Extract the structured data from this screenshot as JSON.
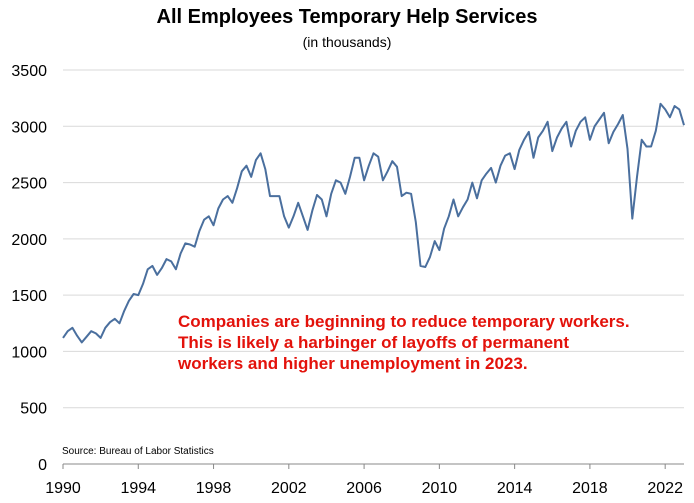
{
  "chart_data": {
    "type": "line",
    "title": "All Employees Temporary Help Services",
    "subtitle": "(in thousands)",
    "xlabel": "",
    "ylabel": "",
    "xlim": [
      1990,
      2023
    ],
    "ylim": [
      0,
      3500
    ],
    "y_ticks": [
      0,
      500,
      1000,
      1500,
      2000,
      2500,
      3000,
      3500
    ],
    "x_ticks": [
      1990,
      1994,
      1998,
      2002,
      2006,
      2010,
      2014,
      2018,
      2022
    ],
    "grid": "horizontal",
    "line_color": "#4a6f9e",
    "annotation_color": "#e3120b",
    "annotation_lines": [
      "Companies are beginning to reduce temporary workers.",
      "This is likely a harbinger of layoffs of permanent",
      "workers and higher unemployment in 2023."
    ],
    "source": "Source: Bureau of Labor Statistics",
    "series": [
      {
        "name": "All Employees Temporary Help Services",
        "x": [
          1990.0,
          1990.25,
          1990.5,
          1990.75,
          1991.0,
          1991.25,
          1991.5,
          1991.75,
          1992.0,
          1992.25,
          1992.5,
          1992.75,
          1993.0,
          1993.25,
          1993.5,
          1993.75,
          1994.0,
          1994.25,
          1994.5,
          1994.75,
          1995.0,
          1995.25,
          1995.5,
          1995.75,
          1996.0,
          1996.25,
          1996.5,
          1996.75,
          1997.0,
          1997.25,
          1997.5,
          1997.75,
          1998.0,
          1998.25,
          1998.5,
          1998.75,
          1999.0,
          1999.25,
          1999.5,
          1999.75,
          2000.0,
          2000.25,
          2000.5,
          2000.75,
          2001.0,
          2001.25,
          2001.5,
          2001.75,
          2002.0,
          2002.25,
          2002.5,
          2002.75,
          2003.0,
          2003.25,
          2003.5,
          2003.75,
          2004.0,
          2004.25,
          2004.5,
          2004.75,
          2005.0,
          2005.25,
          2005.5,
          2005.75,
          2006.0,
          2006.25,
          2006.5,
          2006.75,
          2007.0,
          2007.25,
          2007.5,
          2007.75,
          2008.0,
          2008.25,
          2008.5,
          2008.75,
          2009.0,
          2009.25,
          2009.5,
          2009.75,
          2010.0,
          2010.25,
          2010.5,
          2010.75,
          2011.0,
          2011.25,
          2011.5,
          2011.75,
          2012.0,
          2012.25,
          2012.5,
          2012.75,
          2013.0,
          2013.25,
          2013.5,
          2013.75,
          2014.0,
          2014.25,
          2014.5,
          2014.75,
          2015.0,
          2015.25,
          2015.5,
          2015.75,
          2016.0,
          2016.25,
          2016.5,
          2016.75,
          2017.0,
          2017.25,
          2017.5,
          2017.75,
          2018.0,
          2018.25,
          2018.5,
          2018.75,
          2019.0,
          2019.25,
          2019.5,
          2019.75,
          2020.0,
          2020.25,
          2020.5,
          2020.75,
          2021.0,
          2021.25,
          2021.5,
          2021.75,
          2022.0,
          2022.25,
          2022.5,
          2022.75,
          2023.0
        ],
        "values": [
          1120,
          1180,
          1210,
          1140,
          1080,
          1130,
          1180,
          1160,
          1120,
          1210,
          1260,
          1290,
          1250,
          1360,
          1450,
          1510,
          1500,
          1600,
          1730,
          1760,
          1680,
          1740,
          1820,
          1800,
          1730,
          1870,
          1960,
          1950,
          1930,
          2070,
          2170,
          2200,
          2120,
          2270,
          2350,
          2380,
          2320,
          2450,
          2600,
          2650,
          2550,
          2700,
          2760,
          2620,
          2380,
          2380,
          2380,
          2200,
          2100,
          2200,
          2320,
          2200,
          2080,
          2250,
          2390,
          2350,
          2200,
          2400,
          2520,
          2500,
          2400,
          2550,
          2720,
          2720,
          2520,
          2650,
          2760,
          2730,
          2520,
          2600,
          2690,
          2640,
          2380,
          2410,
          2400,
          2150,
          1760,
          1750,
          1840,
          1980,
          1900,
          2090,
          2200,
          2350,
          2200,
          2280,
          2350,
          2500,
          2360,
          2520,
          2580,
          2630,
          2500,
          2650,
          2740,
          2760,
          2620,
          2790,
          2880,
          2950,
          2720,
          2900,
          2960,
          3040,
          2780,
          2900,
          2980,
          3040,
          2820,
          2960,
          3040,
          3080,
          2880,
          3000,
          3060,
          3120,
          2850,
          2950,
          3020,
          3100,
          2800,
          2180,
          2550,
          2880,
          2820,
          2820,
          2960,
          3200,
          3150,
          3080,
          3180,
          3150,
          3010
        ]
      }
    ]
  }
}
